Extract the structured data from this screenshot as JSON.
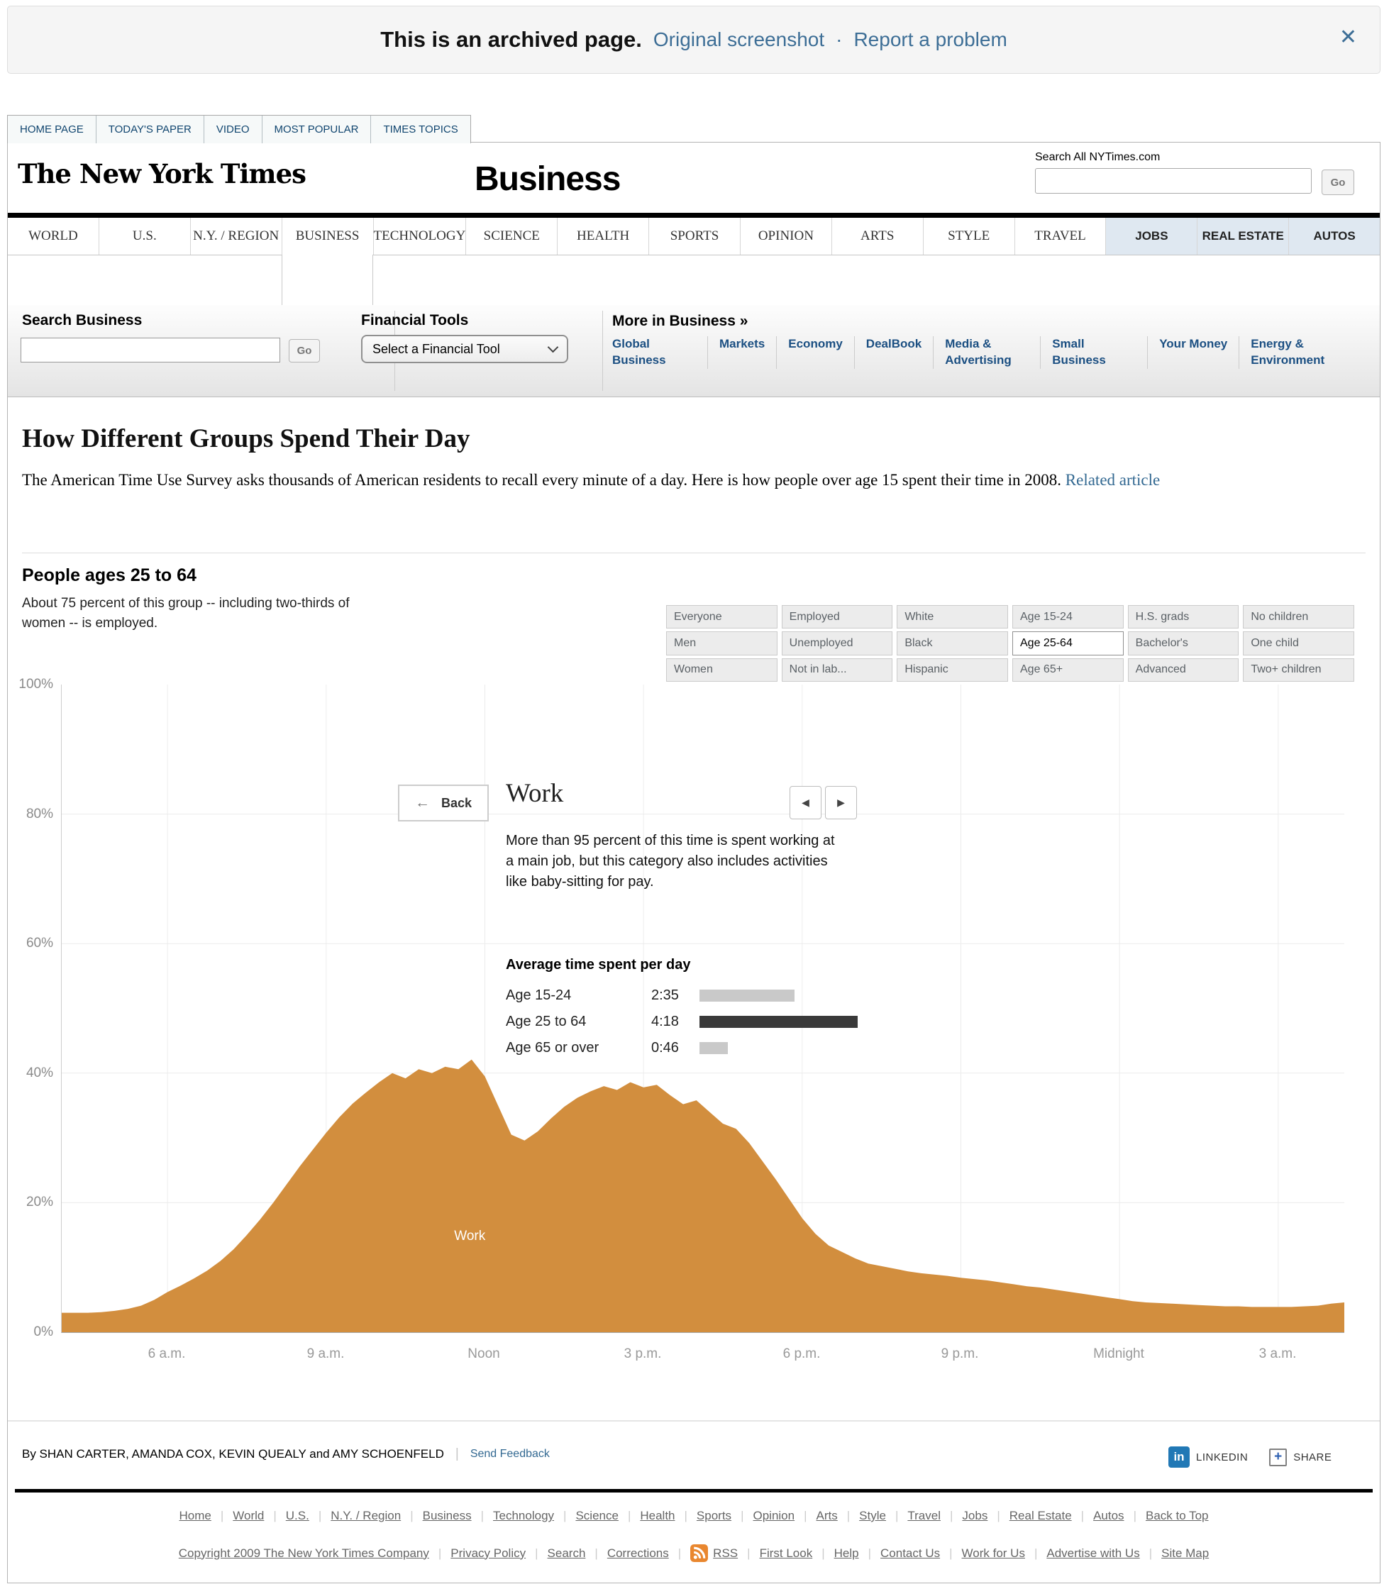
{
  "banner": {
    "title": "This is an archived page.",
    "link1": "Original screenshot",
    "sep": "·",
    "link2": "Report a problem",
    "close": "✕"
  },
  "top_tabs": [
    "HOME PAGE",
    "TODAY'S PAPER",
    "VIDEO",
    "MOST POPULAR",
    "TIMES TOPICS"
  ],
  "masthead": {
    "logo": "The New York Times",
    "section": "Business",
    "search_label": "Search All NYTimes.com",
    "go": "Go"
  },
  "main_nav": {
    "items": [
      "WORLD",
      "U.S.",
      "N.Y. / REGION",
      "BUSINESS",
      "TECHNOLOGY",
      "SCIENCE",
      "HEALTH",
      "SPORTS",
      "OPINION",
      "ARTS",
      "STYLE",
      "TRAVEL"
    ],
    "apps": [
      "JOBS",
      "REAL ESTATE",
      "AUTOS"
    ],
    "active": "BUSINESS"
  },
  "subnav": {
    "search_label": "Search Business",
    "go": "Go",
    "financial_label": "Financial Tools",
    "financial_select": "Select a Financial Tool",
    "more_label": "More in Business »",
    "links": [
      "Global Business",
      "Markets",
      "Economy",
      "DealBook",
      "Media & Advertising",
      "Small Business",
      "Your Money",
      "Energy & Environment"
    ]
  },
  "article": {
    "title": "How Different Groups Spend Their Day",
    "intro": "The American Time Use Survey asks thousands of American residents to recall every minute of a day. Here is how people over age 15 spent their time in 2008.",
    "link": "Related article"
  },
  "module": {
    "group_title": "People ages 25 to 64",
    "group_desc": "About 75 percent of this group -- including two-thirds of women -- is employed.",
    "filters": [
      [
        "Everyone",
        "Men",
        "Women"
      ],
      [
        "Employed",
        "Unemployed",
        "Not in lab..."
      ],
      [
        "White",
        "Black",
        "Hispanic"
      ],
      [
        "Age 15-24",
        "Age 25-64",
        "Age 65+"
      ],
      [
        "H.S. grads",
        "Bachelor's",
        "Advanced"
      ],
      [
        "No children",
        "One child",
        "Two+ children"
      ]
    ],
    "active_filter": "Age 25-64",
    "back_arrow": "←",
    "back_label": "Back",
    "prev_icon": "◀",
    "next_icon": "▶",
    "activity_title": "Work",
    "activity_desc": "More than 95 percent of this time is spent working at a main job, but this category also includes activities like baby-sitting for pay.",
    "avg_title": "Average time spent per day",
    "avg_rows": [
      {
        "label": "Age 15-24",
        "time": "2:35",
        "minutes": 155,
        "active": false
      },
      {
        "label": "Age 25 to 64",
        "time": "4:18",
        "minutes": 258,
        "active": true
      },
      {
        "label": "Age 65 or over",
        "time": "0:46",
        "minutes": 46,
        "active": false
      }
    ],
    "area_label": "Work"
  },
  "chart_data": {
    "type": "area",
    "title": "Work",
    "subtitle": "Percent of people ages 25 to 64 working, by time of day",
    "x_unit": "hour of day (24-hour clock, axis runs 4 a.m. to 4 a.m.)",
    "xrange": [
      4,
      28.25
    ],
    "ylim": [
      0,
      100
    ],
    "area_color": "#d28e3e",
    "grid": true,
    "xticks": [
      {
        "h": 6,
        "label": "6 a.m."
      },
      {
        "h": 9,
        "label": "9 a.m."
      },
      {
        "h": 12,
        "label": "Noon"
      },
      {
        "h": 15,
        "label": "3 p.m."
      },
      {
        "h": 18,
        "label": "6 p.m."
      },
      {
        "h": 21,
        "label": "9 p.m."
      },
      {
        "h": 24,
        "label": "Midnight"
      },
      {
        "h": 27,
        "label": "3 a.m."
      }
    ],
    "yticks": [
      {
        "p": 100,
        "label": "100%"
      },
      {
        "p": 80,
        "label": "80%"
      },
      {
        "p": 60,
        "label": "60%"
      },
      {
        "p": 40,
        "label": "40%"
      },
      {
        "p": 20,
        "label": "20%"
      },
      {
        "p": 0,
        "label": "0%"
      }
    ],
    "x": [
      4,
      4.25,
      4.5,
      4.75,
      5,
      5.25,
      5.5,
      5.75,
      6,
      6.25,
      6.5,
      6.75,
      7,
      7.25,
      7.5,
      7.75,
      8,
      8.25,
      8.5,
      8.75,
      9,
      9.25,
      9.5,
      9.75,
      10,
      10.25,
      10.5,
      10.75,
      11,
      11.25,
      11.5,
      11.75,
      12,
      12.25,
      12.5,
      12.75,
      13,
      13.25,
      13.5,
      13.75,
      14,
      14.25,
      14.5,
      14.75,
      15,
      15.25,
      15.5,
      15.75,
      16,
      16.25,
      16.5,
      16.75,
      17,
      17.25,
      17.5,
      17.75,
      18,
      18.25,
      18.5,
      18.75,
      19,
      19.25,
      19.5,
      19.75,
      20,
      20.25,
      20.5,
      20.75,
      21,
      21.25,
      21.5,
      21.75,
      22,
      22.25,
      22.5,
      22.75,
      23,
      23.25,
      23.5,
      23.75,
      24,
      24.25,
      24.5,
      24.75,
      25,
      25.25,
      25.5,
      25.75,
      26,
      26.25,
      26.5,
      26.75,
      27,
      27.25,
      27.5,
      27.75,
      28,
      28.25
    ],
    "values": [
      3,
      3,
      3,
      3.1,
      3.3,
      3.6,
      4.1,
      5,
      6.2,
      7.2,
      8.3,
      9.5,
      11,
      12.8,
      15,
      17.4,
      20,
      22.8,
      25.6,
      28.2,
      30.8,
      33.2,
      35.3,
      37,
      38.6,
      40,
      39.2,
      40.6,
      40,
      41,
      40.6,
      42.1,
      39.5,
      35,
      30.5,
      29.6,
      31,
      33,
      34.8,
      36.2,
      37.2,
      38,
      37.4,
      38.6,
      37.8,
      38.2,
      36.6,
      35.2,
      35.8,
      34,
      32.2,
      31.4,
      29.2,
      26.4,
      23.6,
      20.6,
      17.6,
      15.2,
      13.4,
      12.4,
      11.4,
      10.6,
      10.2,
      9.8,
      9.4,
      9.1,
      8.9,
      8.7,
      8.4,
      8.2,
      8,
      7.7,
      7.4,
      7.1,
      6.9,
      6.6,
      6.3,
      6,
      5.7,
      5.4,
      5.1,
      4.8,
      4.6,
      4.5,
      4.4,
      4.3,
      4.2,
      4.1,
      4,
      4,
      3.9,
      3.9,
      3.9,
      3.9,
      4,
      4.1,
      4.4,
      4.6
    ]
  },
  "byline": {
    "by": "By SHAN CARTER, AMANDA COX, KEVIN QUEALY and AMY SCHOENFELD",
    "sep": "|",
    "feedback": "Send Feedback",
    "linkedin_glyph": "in",
    "linkedin": "LINKEDIN",
    "share_glyph": "+",
    "share": "SHARE"
  },
  "footer": {
    "row1": [
      "Home",
      "World",
      "U.S.",
      "N.Y. / Region",
      "Business",
      "Technology",
      "Science",
      "Health",
      "Sports",
      "Opinion",
      "Arts",
      "Style",
      "Travel",
      "Jobs",
      "Real Estate",
      "Autos",
      "Back to Top"
    ],
    "row2": [
      "Copyright 2009 The New York Times Company",
      "Privacy Policy",
      "Search",
      "Corrections",
      "RSS",
      "First Look",
      "Help",
      "Contact Us",
      "Work for Us",
      "Advertise with Us",
      "Site Map"
    ]
  }
}
